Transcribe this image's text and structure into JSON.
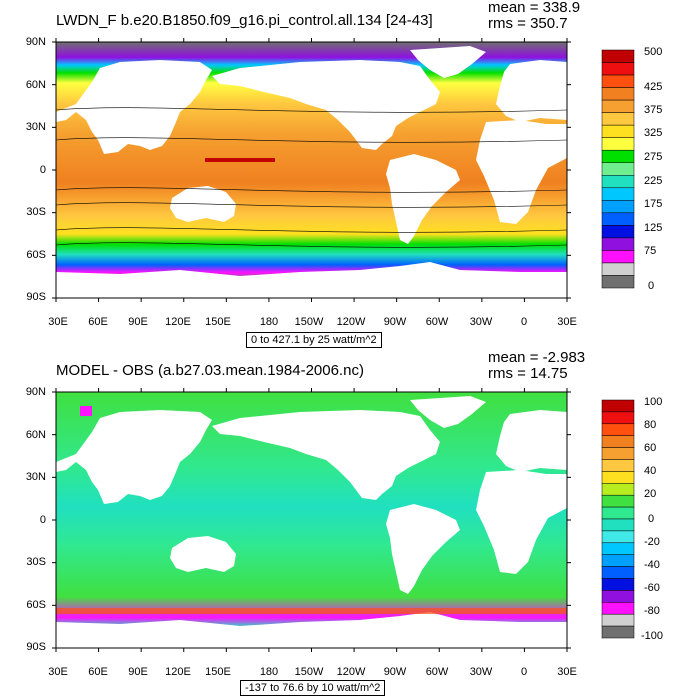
{
  "colors": {
    "ocean_top": "#f0a040",
    "ocean_bottom": "#30e0c0",
    "land": "#ffffff",
    "sea_ice": "#707070",
    "coast": "#000000"
  },
  "chart_data": [
    {
      "type": "heatmap",
      "title": "LWDN_F b.e20.B1850.f09_g16.pi_control.all.134 [24-43]",
      "stats": {
        "mean": "mean = 338.9",
        "rms": "rms = 350.7"
      },
      "ytick_labels": [
        "90N",
        "60N",
        "30N",
        "0",
        "30S",
        "60S",
        "90S"
      ],
      "xtick_labels": [
        "30E",
        "60E",
        "90E",
        "120E",
        "150E",
        "180",
        "150W",
        "120W",
        "90W",
        "60W",
        "30W",
        "0",
        "30E"
      ],
      "range_label": "0 to 427.1 by 25 watt/m^2",
      "colorbar": {
        "colors": [
          "#c00000",
          "#ee1010",
          "#ff5010",
          "#f08020",
          "#f5a030",
          "#ffc840",
          "#ffe020",
          "#ffff40",
          "#00e000",
          "#70ee90",
          "#20e0c0",
          "#00c8ff",
          "#00a0ff",
          "#0060ff",
          "#0010e0",
          "#9010e0",
          "#ff10ff",
          "#d0d0d0",
          "#707070"
        ],
        "labels": [
          "500",
          "425",
          "375",
          "325",
          "275",
          "225",
          "175",
          "125",
          "75",
          "0"
        ]
      }
    },
    {
      "type": "heatmap",
      "title": "MODEL - OBS (a.b27.03.mean.1984-2006.nc)",
      "stats": {
        "mean": "mean = -2.983",
        "rms": "rms = 14.75"
      },
      "ytick_labels": [
        "90N",
        "60N",
        "30N",
        "0",
        "30S",
        "60S",
        "90S"
      ],
      "xtick_labels": [
        "30E",
        "60E",
        "90E",
        "120E",
        "150E",
        "180",
        "150W",
        "120W",
        "90W",
        "60W",
        "30W",
        "0",
        "30E"
      ],
      "range_label": "-137 to 76.6 by 10 watt/m^2",
      "colorbar": {
        "colors": [
          "#c00000",
          "#ee1010",
          "#ff5010",
          "#f08020",
          "#f5a030",
          "#ffc840",
          "#ffe020",
          "#b8ee20",
          "#40e040",
          "#30e890",
          "#20e0c0",
          "#40e8e8",
          "#00c8ff",
          "#00a0ff",
          "#0060ff",
          "#0010e0",
          "#9010e0",
          "#ff10ff",
          "#d0d0d0",
          "#707070"
        ],
        "labels": [
          "100",
          "80",
          "60",
          "40",
          "20",
          "0",
          "-20",
          "-40",
          "-60",
          "-80",
          "-100"
        ]
      }
    }
  ]
}
